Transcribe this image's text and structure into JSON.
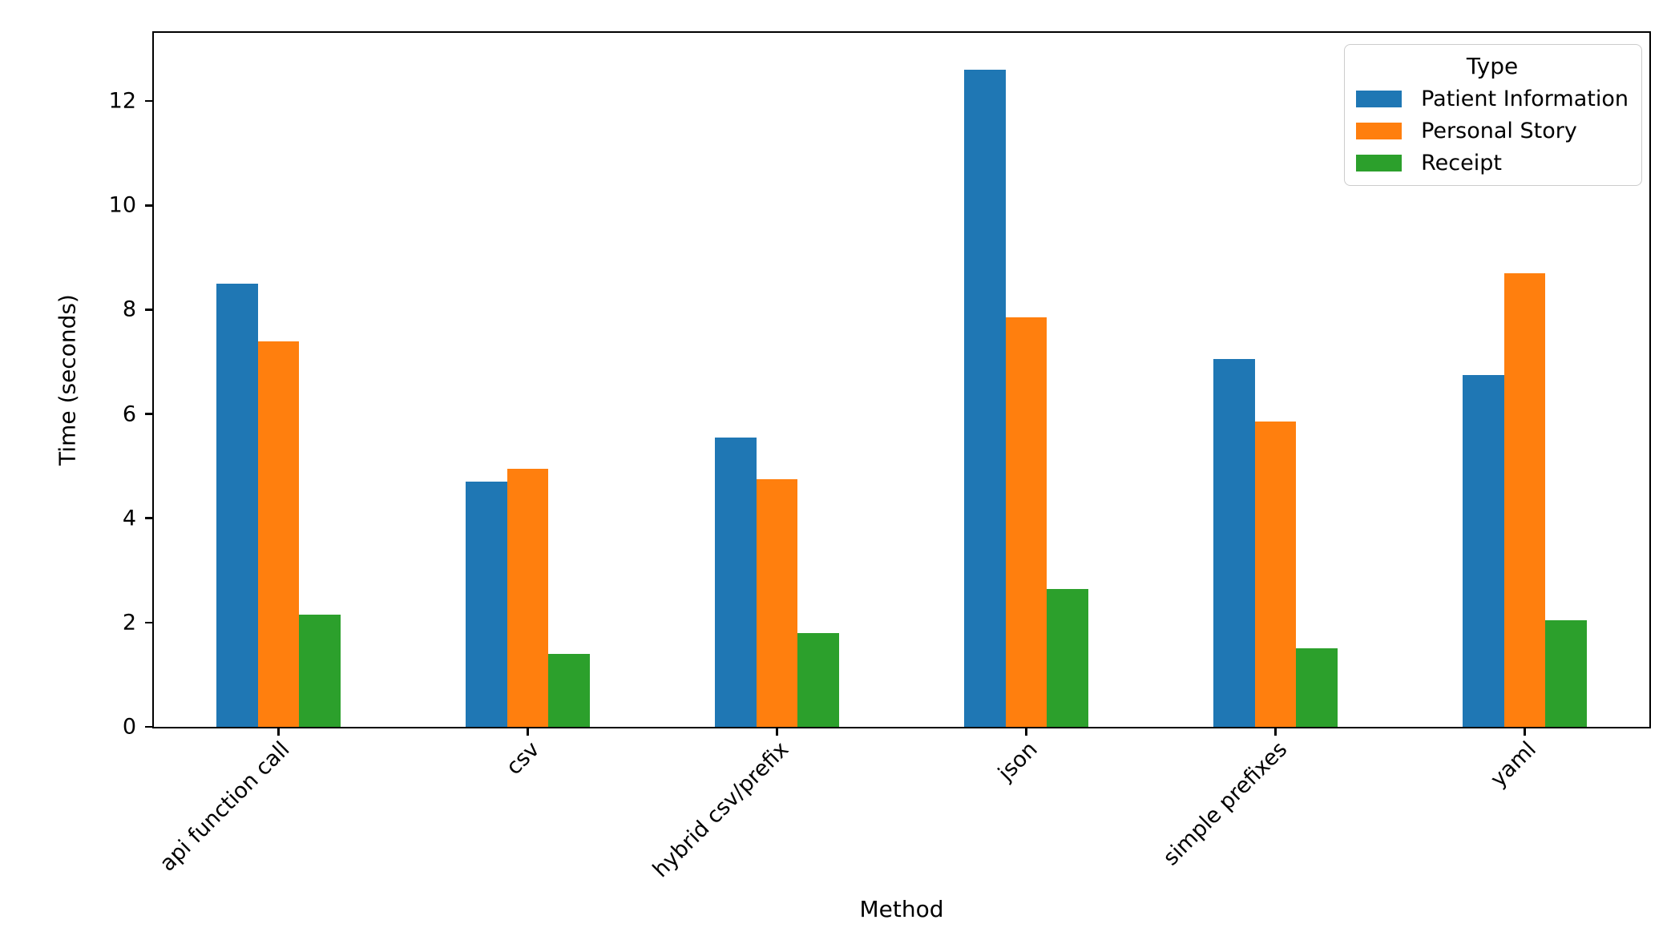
{
  "chart_data": {
    "type": "bar",
    "title": "",
    "xlabel": "Method",
    "ylabel": "Time (seconds)",
    "categories": [
      "api function call",
      "csv",
      "hybrid csv/prefix",
      "json",
      "simple prefixes",
      "yaml"
    ],
    "series": [
      {
        "name": "Patient Information",
        "color": "#1f77b4",
        "values": [
          8.5,
          4.7,
          5.55,
          12.6,
          7.05,
          6.75
        ]
      },
      {
        "name": "Personal Story",
        "color": "#ff7f0e",
        "values": [
          7.4,
          4.95,
          4.75,
          7.85,
          5.85,
          8.7
        ]
      },
      {
        "name": "Receipt",
        "color": "#2ca02c",
        "values": [
          2.15,
          1.4,
          1.8,
          2.65,
          1.5,
          2.05
        ]
      }
    ],
    "legend": {
      "title": "Type",
      "position": "upper right"
    },
    "y_ticks": [
      0,
      2,
      4,
      6,
      8,
      10,
      12
    ],
    "ylim": [
      0,
      13.31
    ],
    "grid": false,
    "x_tick_rotation": 45,
    "bar_group_fraction": 0.5
  }
}
